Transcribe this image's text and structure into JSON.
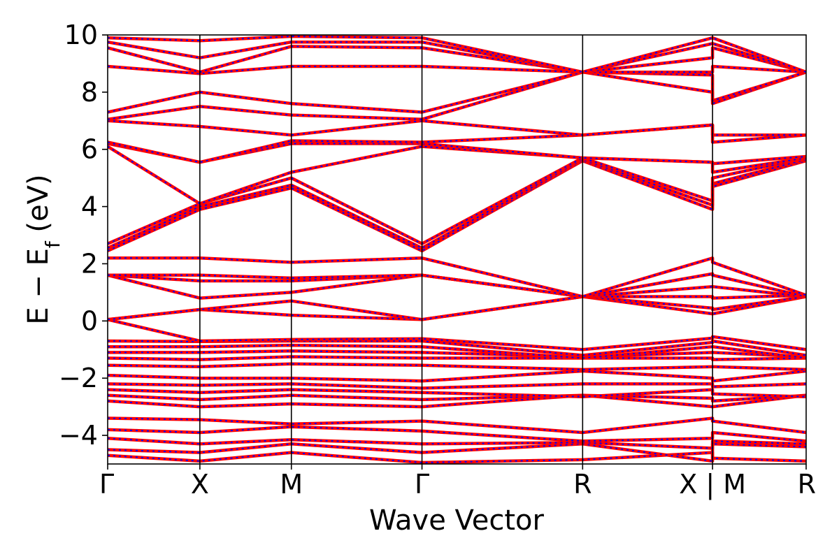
{
  "chart_data": {
    "type": "line",
    "xlabel": "Wave Vector",
    "ylabel": "E − E",
    "ylabel_sub": "f",
    "ylabel_unit": " (eV)",
    "ylim": [
      -5,
      10
    ],
    "yticks": [
      -4,
      -2,
      0,
      2,
      4,
      6,
      8,
      10
    ],
    "ytick_labels": [
      "−4",
      "−2",
      "0",
      "2",
      "4",
      "6",
      "8",
      "10"
    ],
    "xlim": [
      0,
      1
    ],
    "kpoints": [
      {
        "label": "Γ",
        "x": 0.0
      },
      {
        "label": "X",
        "x": 0.132
      },
      {
        "label": "M",
        "x": 0.263
      },
      {
        "label": "Γ",
        "x": 0.45
      },
      {
        "label": "R",
        "x": 0.68
      },
      {
        "label": "X | M",
        "x": 0.866
      },
      {
        "label": "R",
        "x": 1.0
      }
    ],
    "series_colors": [
      "#ff0000",
      "#0000ff"
    ],
    "grid": false,
    "bands": [
      [
        [
          0,
          -4.7
        ],
        [
          0.132,
          -4.9
        ],
        [
          0.263,
          -4.6
        ],
        [
          0.45,
          -4.95
        ],
        [
          0.68,
          -4.85
        ],
        [
          0.866,
          -4.6
        ],
        [
          0.866,
          -4.8
        ],
        [
          1.0,
          -4.9
        ]
      ],
      [
        [
          0,
          -4.5
        ],
        [
          0.132,
          -4.6
        ],
        [
          0.263,
          -4.3
        ],
        [
          0.45,
          -4.6
        ],
        [
          0.68,
          -4.3
        ],
        [
          0.866,
          -4.9
        ],
        [
          0.866,
          -4.3
        ],
        [
          1.0,
          -4.4
        ]
      ],
      [
        [
          0,
          -4.1
        ],
        [
          0.132,
          -4.3
        ],
        [
          0.263,
          -4.15
        ],
        [
          0.45,
          -4.3
        ],
        [
          0.68,
          -4.25
        ],
        [
          0.866,
          -4.45
        ],
        [
          0.866,
          -4.2
        ],
        [
          1.0,
          -4.3
        ]
      ],
      [
        [
          0,
          -3.8
        ],
        [
          0.132,
          -3.9
        ],
        [
          0.263,
          -3.7
        ],
        [
          0.45,
          -3.85
        ],
        [
          0.68,
          -4.2
        ],
        [
          0.866,
          -4.1
        ],
        [
          0.866,
          -3.9
        ],
        [
          1.0,
          -4.2
        ]
      ],
      [
        [
          0,
          -3.4
        ],
        [
          0.132,
          -3.45
        ],
        [
          0.263,
          -3.6
        ],
        [
          0.45,
          -3.5
        ],
        [
          0.68,
          -3.9
        ],
        [
          0.866,
          -3.4
        ],
        [
          0.866,
          -3.5
        ],
        [
          1.0,
          -3.9
        ]
      ],
      [
        [
          0,
          -2.8
        ],
        [
          0.132,
          -3.0
        ],
        [
          0.263,
          -2.9
        ],
        [
          0.45,
          -3.0
        ],
        [
          0.68,
          -2.6
        ],
        [
          0.866,
          -3.0
        ],
        [
          0.866,
          -3.0
        ],
        [
          1.0,
          -2.6
        ]
      ],
      [
        [
          0,
          -2.6
        ],
        [
          0.132,
          -2.75
        ],
        [
          0.263,
          -2.6
        ],
        [
          0.45,
          -2.75
        ],
        [
          0.68,
          -2.6
        ],
        [
          0.866,
          -2.7
        ],
        [
          0.866,
          -2.8
        ],
        [
          1.0,
          -2.6
        ]
      ],
      [
        [
          0,
          -2.4
        ],
        [
          0.132,
          -2.5
        ],
        [
          0.263,
          -2.4
        ],
        [
          0.45,
          -2.5
        ],
        [
          0.68,
          -2.65
        ],
        [
          0.866,
          -2.4
        ],
        [
          0.866,
          -2.55
        ],
        [
          1.0,
          -2.65
        ]
      ],
      [
        [
          0,
          -2.2
        ],
        [
          0.132,
          -2.25
        ],
        [
          0.263,
          -2.2
        ],
        [
          0.45,
          -2.35
        ],
        [
          0.68,
          -2.2
        ],
        [
          0.866,
          -2.2
        ],
        [
          0.866,
          -2.3
        ],
        [
          1.0,
          -2.2
        ]
      ],
      [
        [
          0,
          -1.9
        ],
        [
          0.132,
          -2.0
        ],
        [
          0.263,
          -2.0
        ],
        [
          0.45,
          -2.1
        ],
        [
          0.68,
          -1.75
        ],
        [
          0.866,
          -2.0
        ],
        [
          0.866,
          -2.1
        ],
        [
          1.0,
          -1.75
        ]
      ],
      [
        [
          0,
          -1.55
        ],
        [
          0.132,
          -1.6
        ],
        [
          0.263,
          -1.5
        ],
        [
          0.45,
          -1.55
        ],
        [
          0.68,
          -1.7
        ],
        [
          0.866,
          -1.6
        ],
        [
          0.866,
          -1.6
        ],
        [
          1.0,
          -1.7
        ]
      ],
      [
        [
          0,
          -1.3
        ],
        [
          0.132,
          -1.35
        ],
        [
          0.263,
          -1.25
        ],
        [
          0.45,
          -1.3
        ],
        [
          0.68,
          -1.3
        ],
        [
          0.866,
          -1.3
        ],
        [
          0.866,
          -1.35
        ],
        [
          1.0,
          -1.3
        ]
      ],
      [
        [
          0,
          -1.1
        ],
        [
          0.132,
          -1.1
        ],
        [
          0.263,
          -1.05
        ],
        [
          0.45,
          -1.1
        ],
        [
          0.68,
          -1.25
        ],
        [
          0.866,
          -1.1
        ],
        [
          0.866,
          -1.1
        ],
        [
          1.0,
          -1.25
        ]
      ],
      [
        [
          0,
          -0.9
        ],
        [
          0.132,
          -0.9
        ],
        [
          0.263,
          -0.85
        ],
        [
          0.45,
          -0.9
        ],
        [
          0.68,
          -1.3
        ],
        [
          0.866,
          -0.9
        ],
        [
          0.866,
          -0.9
        ],
        [
          1.0,
          -1.3
        ]
      ],
      [
        [
          0,
          -0.7
        ],
        [
          0.132,
          -0.72
        ],
        [
          0.263,
          -0.7
        ],
        [
          0.45,
          -0.7
        ],
        [
          0.68,
          -1.2
        ],
        [
          0.866,
          -0.75
        ],
        [
          0.866,
          -0.7
        ],
        [
          1.0,
          -1.2
        ]
      ],
      [
        [
          0,
          0.05
        ],
        [
          0.132,
          -0.7
        ],
        [
          0.263,
          -0.65
        ],
        [
          0.45,
          -0.62
        ],
        [
          0.68,
          -1.0
        ],
        [
          0.866,
          -0.6
        ],
        [
          0.866,
          -0.55
        ],
        [
          1.0,
          -1.0
        ]
      ],
      [
        [
          0,
          0.05
        ],
        [
          0.132,
          0.4
        ],
        [
          0.263,
          0.2
        ],
        [
          0.45,
          0.05
        ],
        [
          0.68,
          0.85
        ],
        [
          0.866,
          0.25
        ],
        [
          0.866,
          0.25
        ],
        [
          1.0,
          0.85
        ]
      ],
      [
        [
          0,
          0.05
        ],
        [
          0.132,
          0.4
        ],
        [
          0.263,
          0.7
        ],
        [
          0.45,
          0.05
        ],
        [
          0.68,
          0.85
        ],
        [
          0.866,
          0.45
        ],
        [
          0.866,
          0.4
        ],
        [
          1.0,
          0.85
        ]
      ],
      [
        [
          0,
          1.6
        ],
        [
          0.132,
          0.8
        ],
        [
          0.263,
          1.0
        ],
        [
          0.45,
          1.6
        ],
        [
          0.68,
          0.85
        ],
        [
          0.866,
          0.85
        ],
        [
          0.866,
          0.8
        ],
        [
          1.0,
          0.9
        ]
      ],
      [
        [
          0,
          1.6
        ],
        [
          0.132,
          1.4
        ],
        [
          0.263,
          1.4
        ],
        [
          0.45,
          1.6
        ],
        [
          0.68,
          0.85
        ],
        [
          0.866,
          1.2
        ],
        [
          0.866,
          1.2
        ],
        [
          1.0,
          0.85
        ]
      ],
      [
        [
          0,
          1.6
        ],
        [
          0.132,
          1.6
        ],
        [
          0.263,
          1.5
        ],
        [
          0.45,
          1.6
        ],
        [
          0.68,
          0.85
        ],
        [
          0.866,
          1.65
        ],
        [
          0.866,
          1.6
        ],
        [
          1.0,
          0.85
        ]
      ],
      [
        [
          0,
          2.2
        ],
        [
          0.132,
          2.2
        ],
        [
          0.263,
          2.05
        ],
        [
          0.45,
          2.2
        ],
        [
          0.68,
          0.85
        ],
        [
          0.866,
          2.2
        ],
        [
          0.866,
          2.05
        ],
        [
          1.0,
          0.9
        ]
      ],
      [
        [
          0,
          2.45
        ],
        [
          0.132,
          3.9
        ],
        [
          0.263,
          4.65
        ],
        [
          0.45,
          2.45
        ],
        [
          0.68,
          5.6
        ],
        [
          0.866,
          3.9
        ],
        [
          0.866,
          4.7
        ],
        [
          1.0,
          5.6
        ]
      ],
      [
        [
          0,
          2.55
        ],
        [
          0.132,
          4.0
        ],
        [
          0.263,
          4.75
        ],
        [
          0.45,
          2.55
        ],
        [
          0.68,
          5.65
        ],
        [
          0.866,
          4.05
        ],
        [
          0.866,
          4.8
        ],
        [
          1.0,
          5.65
        ]
      ],
      [
        [
          0,
          2.7
        ],
        [
          0.132,
          4.1
        ],
        [
          0.263,
          5.0
        ],
        [
          0.45,
          2.7
        ],
        [
          0.68,
          5.7
        ],
        [
          0.866,
          4.2
        ],
        [
          0.866,
          5.0
        ],
        [
          1.0,
          5.7
        ]
      ],
      [
        [
          0,
          6.1
        ],
        [
          0.132,
          4.1
        ],
        [
          0.263,
          5.2
        ],
        [
          0.45,
          6.1
        ],
        [
          0.68,
          5.7
        ],
        [
          0.866,
          5.55
        ],
        [
          0.866,
          5.2
        ],
        [
          1.0,
          5.7
        ]
      ],
      [
        [
          0,
          6.2
        ],
        [
          0.132,
          5.55
        ],
        [
          0.263,
          6.2
        ],
        [
          0.45,
          6.2
        ],
        [
          0.68,
          5.7
        ],
        [
          0.866,
          5.55
        ],
        [
          0.866,
          5.5
        ],
        [
          1.0,
          5.75
        ]
      ],
      [
        [
          0,
          6.25
        ],
        [
          0.132,
          5.55
        ],
        [
          0.263,
          6.3
        ],
        [
          0.45,
          6.25
        ],
        [
          0.68,
          6.5
        ],
        [
          0.866,
          6.85
        ],
        [
          0.866,
          6.25
        ],
        [
          1.0,
          6.5
        ]
      ],
      [
        [
          0,
          7.0
        ],
        [
          0.132,
          6.8
        ],
        [
          0.263,
          6.5
        ],
        [
          0.45,
          7.0
        ],
        [
          0.68,
          6.5
        ],
        [
          0.866,
          6.85
        ],
        [
          0.866,
          6.5
        ],
        [
          1.0,
          6.5
        ]
      ],
      [
        [
          0,
          7.05
        ],
        [
          0.132,
          7.5
        ],
        [
          0.263,
          7.2
        ],
        [
          0.45,
          7.05
        ],
        [
          0.68,
          8.7
        ],
        [
          0.866,
          8.0
        ],
        [
          0.866,
          7.6
        ],
        [
          1.0,
          8.7
        ]
      ],
      [
        [
          0,
          7.3
        ],
        [
          0.132,
          8.0
        ],
        [
          0.263,
          7.6
        ],
        [
          0.45,
          7.3
        ],
        [
          0.68,
          8.7
        ],
        [
          0.866,
          8.6
        ],
        [
          0.866,
          7.7
        ],
        [
          1.0,
          8.7
        ]
      ],
      [
        [
          0,
          8.9
        ],
        [
          0.132,
          8.65
        ],
        [
          0.263,
          8.9
        ],
        [
          0.45,
          8.9
        ],
        [
          0.68,
          8.7
        ],
        [
          0.866,
          8.7
        ],
        [
          0.866,
          8.9
        ],
        [
          1.0,
          8.7
        ]
      ],
      [
        [
          0,
          9.55
        ],
        [
          0.132,
          8.7
        ],
        [
          0.263,
          9.6
        ],
        [
          0.45,
          9.55
        ],
        [
          0.68,
          8.7
        ],
        [
          0.866,
          9.2
        ],
        [
          0.866,
          9.55
        ],
        [
          1.0,
          8.7
        ]
      ],
      [
        [
          0,
          9.75
        ],
        [
          0.132,
          9.2
        ],
        [
          0.263,
          9.75
        ],
        [
          0.45,
          9.75
        ],
        [
          0.68,
          8.7
        ],
        [
          0.866,
          9.7
        ],
        [
          0.866,
          9.7
        ],
        [
          1.0,
          8.7
        ]
      ],
      [
        [
          0,
          9.9
        ],
        [
          0.132,
          9.8
        ],
        [
          0.263,
          9.95
        ],
        [
          0.45,
          9.9
        ],
        [
          0.68,
          8.7
        ],
        [
          0.866,
          9.9
        ],
        [
          0.866,
          9.9
        ],
        [
          1.0,
          8.7
        ]
      ]
    ]
  }
}
